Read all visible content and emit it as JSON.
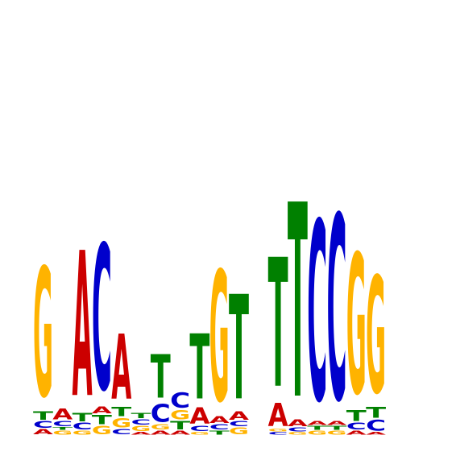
{
  "chart_data": {
    "type": "sequence-logo",
    "alphabet": [
      "A",
      "C",
      "G",
      "T"
    ],
    "colors": {
      "A": "#cc0000",
      "C": "#0000cc",
      "G": "#ffb300",
      "T": "#008000"
    },
    "ymax_bits": 2.0,
    "positions": [
      [
        [
          "A",
          0.04
        ],
        [
          "C",
          0.05
        ],
        [
          "T",
          0.06
        ],
        [
          "G",
          0.95
        ]
      ],
      [
        [
          "G",
          0.03
        ],
        [
          "T",
          0.02
        ],
        [
          "C",
          0.04
        ],
        [
          "A",
          0.08
        ]
      ],
      [
        [
          "G",
          0.03
        ],
        [
          "C",
          0.05
        ],
        [
          "T",
          0.06
        ],
        [
          "A",
          1.07
        ]
      ],
      [
        [
          "G",
          0.06
        ],
        [
          "T",
          0.07
        ],
        [
          "A",
          0.05
        ],
        [
          "C",
          1.07
        ]
      ],
      [
        [
          "C",
          0.04
        ],
        [
          "G",
          0.07
        ],
        [
          "T",
          0.07
        ],
        [
          "A",
          0.48
        ]
      ],
      [
        [
          "A",
          0.02
        ],
        [
          "G",
          0.04
        ],
        [
          "C",
          0.04
        ],
        [
          "T",
          0.04
        ]
      ],
      [
        [
          "A",
          0.03
        ],
        [
          "G",
          0.04
        ],
        [
          "C",
          0.13
        ],
        [
          "T",
          0.32
        ]
      ],
      [
        [
          "A",
          0.03
        ],
        [
          "T",
          0.06
        ],
        [
          "G",
          0.07
        ],
        [
          "C",
          0.11
        ]
      ],
      [
        [
          "G",
          0.02
        ],
        [
          "C",
          0.04
        ],
        [
          "A",
          0.12
        ],
        [
          "T",
          0.48
        ]
      ],
      [
        [
          "T",
          0.03
        ],
        [
          "C",
          0.04
        ],
        [
          "A",
          0.05
        ],
        [
          "G",
          0.96
        ]
      ],
      [
        [
          "G",
          0.05
        ],
        [
          "C",
          0.04
        ],
        [
          "A",
          0.06
        ],
        [
          "T",
          0.77
        ]
      ],
      [],
      [
        [
          "C",
          0.02
        ],
        [
          "G",
          0.02
        ],
        [
          "A",
          0.17
        ],
        [
          "T",
          0.95
        ]
      ],
      [
        [
          "G",
          0.02
        ],
        [
          "C",
          0.03
        ],
        [
          "A",
          0.05
        ],
        [
          "T",
          1.43
        ]
      ],
      [
        [
          "G",
          0.03
        ],
        [
          "T",
          0.03
        ],
        [
          "A",
          0.03
        ],
        [
          "C",
          1.32
        ]
      ],
      [
        [
          "G",
          0.03
        ],
        [
          "T",
          0.03
        ],
        [
          "A",
          0.03
        ],
        [
          "C",
          1.36
        ]
      ],
      [
        [
          "A",
          0.03
        ],
        [
          "C",
          0.05
        ],
        [
          "T",
          0.08
        ],
        [
          "G",
          1.03
        ]
      ],
      [
        [
          "A",
          0.02
        ],
        [
          "C",
          0.08
        ],
        [
          "T",
          0.08
        ],
        [
          "G",
          0.86
        ]
      ]
    ]
  }
}
